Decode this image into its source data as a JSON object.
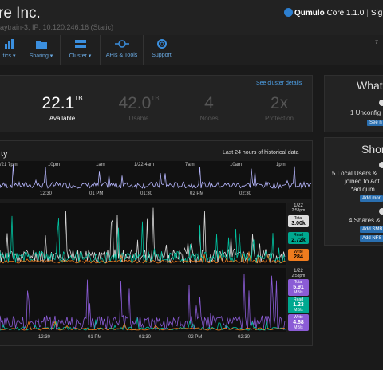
{
  "header": {
    "company": "re Inc.",
    "subtitle": "aytrain-3, IP: 10.120.246.16 (Static)",
    "brand_name": "Qumulo",
    "brand_version": "Core 1.1.0",
    "signed": "Signed"
  },
  "nav": {
    "items": [
      {
        "label": "tics ▾",
        "icon": "analytics-icon"
      },
      {
        "label": "Sharing ▾",
        "icon": "sharing-icon"
      },
      {
        "label": "Cluster ▾",
        "icon": "cluster-icon"
      },
      {
        "label": "APIs & Tools",
        "icon": "api-icon"
      },
      {
        "label": "Support",
        "icon": "support-icon"
      }
    ],
    "right_label": "7"
  },
  "overview": {
    "link": "See cluster details",
    "stats": [
      {
        "value": "22.1",
        "unit": "TB",
        "label": "Available"
      },
      {
        "value": "42.0",
        "unit": "TB",
        "label": "Usable"
      },
      {
        "value": "4",
        "unit": "",
        "label": "Nodes"
      },
      {
        "value": "2x",
        "unit": "",
        "label": "Protection"
      }
    ]
  },
  "capacity": {
    "title": "ty",
    "range_label": "Last 24 hours of historical data",
    "overview_ticks": [
      "/21 7pm",
      "10pm",
      "1am",
      "1/22 4am",
      "7am",
      "10am",
      "1pm"
    ],
    "detail_ticks": [
      "12:30",
      "01 PM",
      "01:30",
      "02 PM",
      "02:30"
    ]
  },
  "iops": {
    "date": "1/22",
    "time": "2:53pm",
    "total_label": "Total",
    "total_value": "3.00k",
    "read_label": "Read",
    "read_value": "2.72k",
    "write_label": "Write",
    "write_value": "284"
  },
  "throughput": {
    "date": "1/22",
    "time": "2:53pm",
    "total_label": "Total",
    "total_value": "5.91",
    "total_unit": "MB/s",
    "read_label": "Read",
    "read_value": "1.23",
    "read_unit": "MB/s",
    "write_label": "Write",
    "write_value": "4.68",
    "write_unit": "MB/s"
  },
  "whats_new": {
    "title": "What's",
    "item_text": "1 Unconfig",
    "button": "See n"
  },
  "shortcuts": {
    "title": "Short",
    "users_text_1": "5 Local Users &",
    "users_text_2": "joined to Act",
    "users_text_3": "*ad.qum",
    "users_button": "Add mor",
    "shares_text": "4 Shares &",
    "smb_button": "Add SMB",
    "nfs_button": "Add NFS"
  },
  "colors": {
    "accent": "#3b8fde",
    "read": "#00c2a0",
    "write": "#f07c1e",
    "throughput_total": "#8b5cd6"
  }
}
